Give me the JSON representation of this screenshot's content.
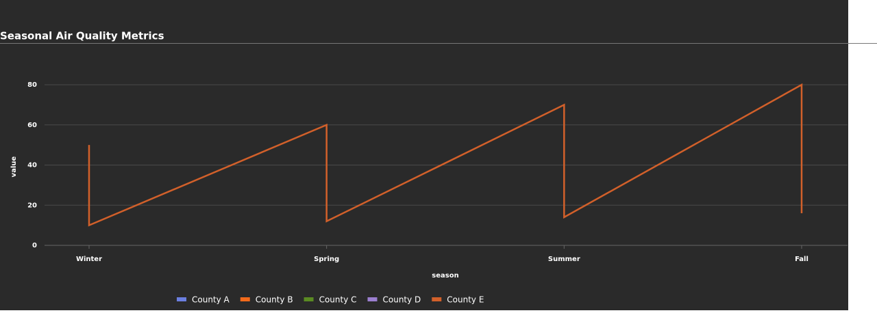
{
  "chart_data": {
    "type": "line",
    "title": "Seasonal Air Quality Metrics",
    "x_label": "season",
    "y_label": "value",
    "x": [
      "Winter",
      "Winter",
      "Spring",
      "Spring",
      "Summer",
      "Summer",
      "Fall",
      "Fall"
    ],
    "series": [
      {
        "name": "County A",
        "color": "#6b7fe0",
        "values": [
          null,
          null,
          null,
          null,
          null,
          null,
          null,
          null
        ]
      },
      {
        "name": "County B",
        "color": "#f26a1b",
        "values": [
          null,
          null,
          null,
          null,
          null,
          null,
          null,
          null
        ]
      },
      {
        "name": "County C",
        "color": "#5a8a22",
        "values": [
          null,
          null,
          null,
          null,
          null,
          null,
          null,
          null
        ]
      },
      {
        "name": "County D",
        "color": "#9b7fd0",
        "values": [
          null,
          null,
          null,
          null,
          null,
          null,
          null,
          null
        ]
      },
      {
        "name": "County E",
        "color": "#d2602a",
        "values": [
          50,
          10,
          60,
          12,
          70,
          14,
          80,
          16
        ]
      }
    ],
    "ylim": [
      0,
      80
    ],
    "yticks": [
      0,
      20,
      40,
      60,
      80
    ],
    "grid": true
  }
}
